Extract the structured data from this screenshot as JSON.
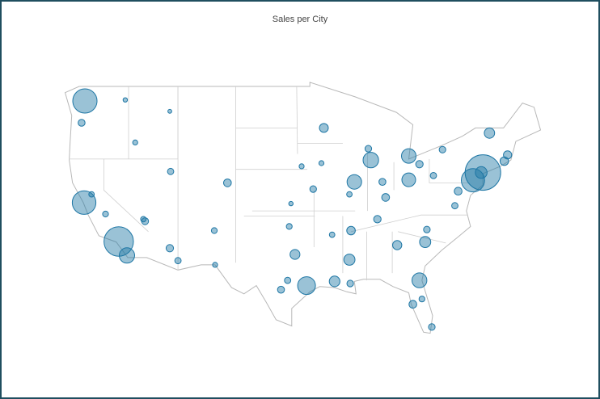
{
  "chart_data": {
    "type": "bubble-map",
    "title": "Sales per City",
    "color": "#1f77a5",
    "x": [
      -74.0,
      -118.2,
      -122.3,
      -122.4,
      -75.2,
      -95.4,
      -87.6,
      -117.2,
      -81.7,
      -89.6,
      -83.0,
      -83.0,
      -74.2,
      -81.0,
      -90.2,
      -92.0,
      -73.2,
      -115.0,
      -105.0,
      -111.9,
      -112.0,
      -96.8,
      -84.4,
      -80.2,
      -82.5,
      -93.3,
      -87.9,
      -71.0,
      -77.0,
      -77.4,
      -80.8,
      -86.8,
      -90.0,
      -90.1,
      -98.5,
      -97.7,
      -97.5,
      -94.6,
      -90.2,
      -85.8,
      -86.2,
      -96.0,
      -106.6,
      -111.0,
      -115.2,
      -122.7,
      -116.2,
      -112.0,
      -117.4,
      -121.5,
      -119.8,
      -78.9,
      -80.0,
      -81.7,
      -71.4,
      -81.4,
      -92.3,
      -106.5,
      -97.3,
      -93.6
    ],
    "y": [
      40.7,
      34.05,
      47.6,
      37.8,
      39.95,
      29.8,
      41.9,
      32.7,
      30.3,
      39.8,
      42.3,
      40.0,
      40.7,
      34.0,
      32.3,
      30.2,
      44.5,
      36.0,
      39.7,
      40.8,
      33.4,
      32.8,
      33.7,
      25.8,
      28.0,
      45.0,
      43.0,
      42.4,
      38.9,
      37.5,
      35.2,
      36.2,
      35.1,
      30.0,
      29.4,
      30.3,
      35.5,
      39.1,
      38.6,
      38.3,
      39.8,
      41.3,
      35.1,
      32.2,
      36.2,
      45.5,
      43.6,
      46.6,
      47.7,
      38.6,
      36.7,
      42.9,
      40.4,
      41.5,
      41.8,
      28.5,
      34.7,
      31.8,
      37.7,
      41.6
    ],
    "values": [
      256368,
      175851,
      119541,
      112670,
      109077,
      64505,
      48540,
      47521,
      44713,
      43054,
      42446,
      38662,
      28576,
      25283,
      24963,
      23140,
      21668,
      10000,
      12000,
      8000,
      11000,
      20000,
      17000,
      9000,
      12000,
      16000,
      9000,
      14000,
      12000,
      8000,
      9000,
      11000,
      15000,
      9000,
      10000,
      8000,
      7000,
      9000,
      6000,
      12000,
      10000,
      5000,
      7000,
      8000,
      6000,
      10000,
      5000,
      3000,
      4000,
      6000,
      7000,
      9000,
      8000,
      11000,
      15000,
      7000,
      6000,
      5000,
      4000,
      5000
    ]
  }
}
